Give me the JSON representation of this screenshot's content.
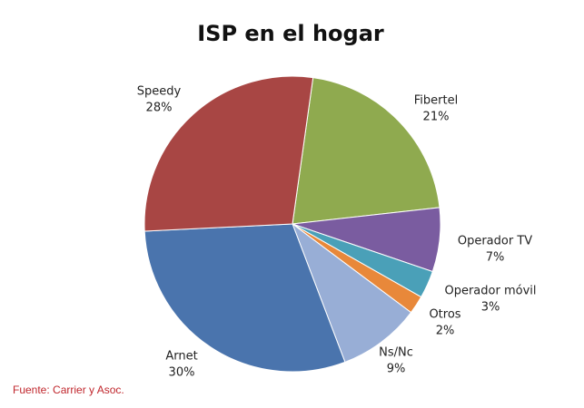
{
  "chart_data": {
    "type": "pie",
    "title": "ISP en el hogar",
    "categories": [
      "Fibertel",
      "Operador TV",
      "Operador móvil",
      "Otros",
      "Ns/Nc",
      "Arnet",
      "Speedy"
    ],
    "values": [
      21,
      7,
      3,
      2,
      9,
      30,
      28
    ],
    "value_labels": [
      "21%",
      "7%",
      "3%",
      "2%",
      "9%",
      "30%",
      "28%"
    ],
    "colors": [
      "#8faa4f",
      "#7a5ca0",
      "#4aa0b8",
      "#e8883a",
      "#98aed6",
      "#4a74ad",
      "#a84644"
    ],
    "source": "Fuente: Carrier y Asoc."
  }
}
